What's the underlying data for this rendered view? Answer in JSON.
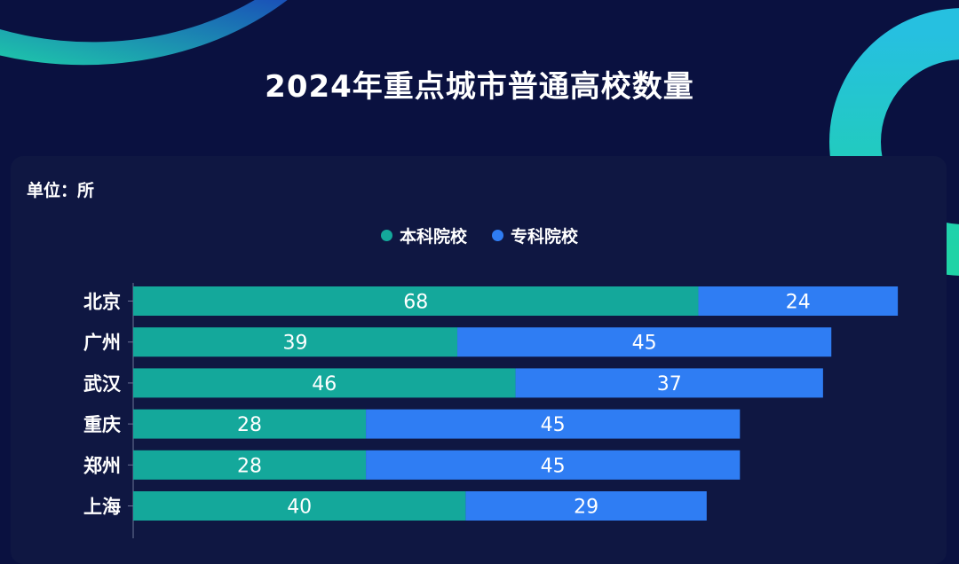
{
  "chart_data": {
    "type": "bar",
    "orientation": "horizontal",
    "stacked": true,
    "title": "2024年重点城市普通高校数量",
    "unit_label": "单位：所",
    "categories": [
      "北京",
      "广州",
      "武汉",
      "重庆",
      "郑州",
      "上海"
    ],
    "series": [
      {
        "name": "本科院校",
        "color": "#14a89b",
        "values": [
          68,
          39,
          46,
          28,
          28,
          40
        ]
      },
      {
        "name": "专科院校",
        "color": "#2f7df3",
        "values": [
          24,
          45,
          37,
          45,
          45,
          29
        ]
      }
    ],
    "legend_position": "top-center",
    "grid": false
  },
  "colors": {
    "background": "#0a1140",
    "panel": "#0f1742",
    "accent_teal": "#14a89b",
    "accent_blue": "#2f7df3"
  }
}
